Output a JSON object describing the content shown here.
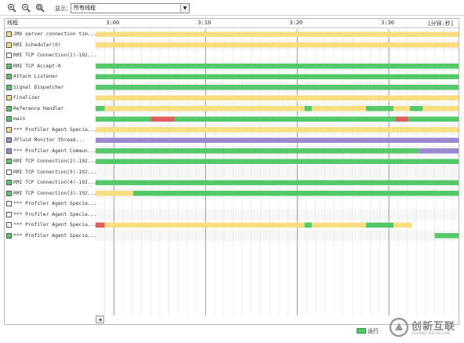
{
  "toolbar": {
    "zoom_in_icon": "zoom-in-icon",
    "zoom_out_icon": "zoom-out-icon",
    "zoom_fit_icon": "zoom-fit-icon",
    "show_label": "显示：",
    "filter_value": "所有线程"
  },
  "header": {
    "threads_label": "线程",
    "unit_label": "[分钟:秒]",
    "time_ticks": [
      {
        "label": "3:00",
        "t": 0
      },
      {
        "label": "3:10",
        "t": 10
      },
      {
        "label": "3:20",
        "t": 20
      },
      {
        "label": "3:30",
        "t": 30
      }
    ]
  },
  "timeline": {
    "t_min": -2,
    "t_max": 37.6
  },
  "colors": {
    "running": "#55c96a",
    "sleeping": "#f8de80",
    "monitor": "#e06060",
    "wait": "#9a88d0"
  },
  "threads": [
    {
      "name": "JMX server connection tim...",
      "state": "sleeping",
      "segments": [
        {
          "from": -2,
          "to": 37.6,
          "state": "sleeping"
        }
      ]
    },
    {
      "name": "RMI Scheduler(0)",
      "state": "sleeping",
      "segments": [
        {
          "from": -2,
          "to": 37.6,
          "state": "sleeping"
        }
      ]
    },
    {
      "name": "RMI TCP Connection(1)-192...",
      "state": "none",
      "segments": []
    },
    {
      "name": "RMI TCP Accept-0",
      "state": "running",
      "segments": [
        {
          "from": -2,
          "to": 37.6,
          "state": "running"
        }
      ]
    },
    {
      "name": "Attach Listener",
      "state": "running",
      "segments": [
        {
          "from": -2,
          "to": 37.6,
          "state": "running"
        }
      ]
    },
    {
      "name": "Signal Dispatcher",
      "state": "running",
      "segments": [
        {
          "from": -2,
          "to": 37.6,
          "state": "running"
        }
      ]
    },
    {
      "name": "Finalizer",
      "state": "sleeping",
      "segments": [
        {
          "from": -2,
          "to": 37.6,
          "state": "sleeping"
        }
      ]
    },
    {
      "name": "Reference Handler",
      "state": "running",
      "segments": [
        {
          "from": -2,
          "to": -1,
          "state": "running"
        },
        {
          "from": -1,
          "to": 20.8,
          "state": "sleeping"
        },
        {
          "from": 20.8,
          "to": 21.6,
          "state": "running"
        },
        {
          "from": 21.6,
          "to": 27.5,
          "state": "sleeping"
        },
        {
          "from": 27.5,
          "to": 30.5,
          "state": "running"
        },
        {
          "from": 30.5,
          "to": 32.3,
          "state": "sleeping"
        },
        {
          "from": 32.3,
          "to": 33.7,
          "state": "running"
        },
        {
          "from": 33.7,
          "to": 37.6,
          "state": "sleeping"
        }
      ]
    },
    {
      "name": "main",
      "state": "running",
      "segments": [
        {
          "from": -2,
          "to": 4,
          "state": "running"
        },
        {
          "from": 4,
          "to": 6.6,
          "state": "monitor"
        },
        {
          "from": 6.6,
          "to": 30.7,
          "state": "running"
        },
        {
          "from": 30.7,
          "to": 32.1,
          "state": "monitor"
        },
        {
          "from": 32.1,
          "to": 37.6,
          "state": "running"
        }
      ]
    },
    {
      "name": "*** Profiler Agent Specia...",
      "state": "sleeping",
      "segments": [
        {
          "from": -2,
          "to": 37.6,
          "state": "sleeping"
        }
      ]
    },
    {
      "name": "JFluid Monitor thread...",
      "state": "wait",
      "segments": [
        {
          "from": -2,
          "to": 37.6,
          "state": "wait"
        }
      ]
    },
    {
      "name": "*** Profiler Agent Commun...",
      "state": "wait",
      "segments": [
        {
          "from": -2,
          "to": 33.3,
          "state": "running"
        },
        {
          "from": 33.3,
          "to": 37.6,
          "state": "wait"
        }
      ]
    },
    {
      "name": "RMI TCP Connection(2)-192...",
      "state": "running",
      "segments": [
        {
          "from": -2,
          "to": 37.6,
          "state": "running"
        }
      ]
    },
    {
      "name": "RMI TCP Connection(5)-192...",
      "state": "none",
      "segments": []
    },
    {
      "name": "RMI TCP Connection(4)-192...",
      "state": "running",
      "segments": [
        {
          "from": -2,
          "to": 37.6,
          "state": "running"
        }
      ]
    },
    {
      "name": "RMI TCP Connection(3)-192...",
      "state": "running",
      "segments": [
        {
          "from": -2,
          "to": 2.1,
          "state": "sleeping"
        },
        {
          "from": 2.1,
          "to": 37.6,
          "state": "running"
        }
      ]
    },
    {
      "name": "*** Profiler Agent Specia...",
      "state": "none",
      "segments": []
    },
    {
      "name": "*** Profiler Agent Specia...",
      "state": "none",
      "segments": []
    },
    {
      "name": "*** Profiler Agent Specia...",
      "state": "none",
      "segments": [
        {
          "from": -2,
          "to": -1,
          "state": "monitor"
        },
        {
          "from": -1,
          "to": 20.8,
          "state": "sleeping"
        },
        {
          "from": 20.8,
          "to": 21.6,
          "state": "running"
        },
        {
          "from": 21.6,
          "to": 27.5,
          "state": "sleeping"
        },
        {
          "from": 27.5,
          "to": 30.5,
          "state": "running"
        },
        {
          "from": 30.5,
          "to": 32.5,
          "state": "sleeping"
        }
      ]
    },
    {
      "name": "*** Profiler Agent Specia...",
      "state": "running",
      "segments": [
        {
          "from": 35,
          "to": 37.6,
          "state": "running"
        }
      ]
    }
  ],
  "legend": {
    "running_label": "运行"
  },
  "watermark": {
    "cn": "创新互联",
    "en": "CHUANG XIN HU LIAN",
    "logo_icon": "brand-logo-icon"
  }
}
